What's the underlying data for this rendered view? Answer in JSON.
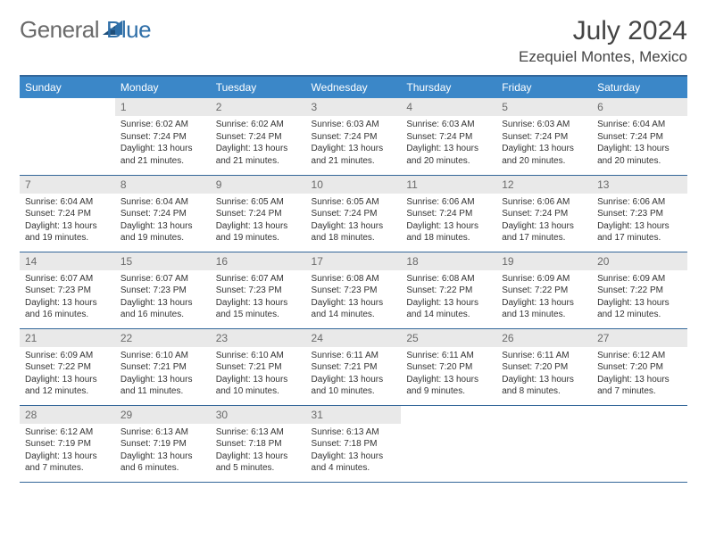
{
  "logo": {
    "text1": "General",
    "text2": "Blue"
  },
  "title": "July 2024",
  "location": "Ezequiel Montes, Mexico",
  "colors": {
    "header_bg": "#3b87c8",
    "header_text": "#ffffff",
    "border": "#336699",
    "daynum_bg": "#e9e9e9",
    "daynum_text": "#6a6a6a",
    "body_text": "#333333",
    "logo_gray": "#6a6a6a",
    "logo_blue": "#2f6fa8"
  },
  "dow": [
    "Sunday",
    "Monday",
    "Tuesday",
    "Wednesday",
    "Thursday",
    "Friday",
    "Saturday"
  ],
  "weeks": [
    [
      null,
      {
        "d": "1",
        "sr": "Sunrise: 6:02 AM",
        "ss": "Sunset: 7:24 PM",
        "dl1": "Daylight: 13 hours",
        "dl2": "and 21 minutes."
      },
      {
        "d": "2",
        "sr": "Sunrise: 6:02 AM",
        "ss": "Sunset: 7:24 PM",
        "dl1": "Daylight: 13 hours",
        "dl2": "and 21 minutes."
      },
      {
        "d": "3",
        "sr": "Sunrise: 6:03 AM",
        "ss": "Sunset: 7:24 PM",
        "dl1": "Daylight: 13 hours",
        "dl2": "and 21 minutes."
      },
      {
        "d": "4",
        "sr": "Sunrise: 6:03 AM",
        "ss": "Sunset: 7:24 PM",
        "dl1": "Daylight: 13 hours",
        "dl2": "and 20 minutes."
      },
      {
        "d": "5",
        "sr": "Sunrise: 6:03 AM",
        "ss": "Sunset: 7:24 PM",
        "dl1": "Daylight: 13 hours",
        "dl2": "and 20 minutes."
      },
      {
        "d": "6",
        "sr": "Sunrise: 6:04 AM",
        "ss": "Sunset: 7:24 PM",
        "dl1": "Daylight: 13 hours",
        "dl2": "and 20 minutes."
      }
    ],
    [
      {
        "d": "7",
        "sr": "Sunrise: 6:04 AM",
        "ss": "Sunset: 7:24 PM",
        "dl1": "Daylight: 13 hours",
        "dl2": "and 19 minutes."
      },
      {
        "d": "8",
        "sr": "Sunrise: 6:04 AM",
        "ss": "Sunset: 7:24 PM",
        "dl1": "Daylight: 13 hours",
        "dl2": "and 19 minutes."
      },
      {
        "d": "9",
        "sr": "Sunrise: 6:05 AM",
        "ss": "Sunset: 7:24 PM",
        "dl1": "Daylight: 13 hours",
        "dl2": "and 19 minutes."
      },
      {
        "d": "10",
        "sr": "Sunrise: 6:05 AM",
        "ss": "Sunset: 7:24 PM",
        "dl1": "Daylight: 13 hours",
        "dl2": "and 18 minutes."
      },
      {
        "d": "11",
        "sr": "Sunrise: 6:06 AM",
        "ss": "Sunset: 7:24 PM",
        "dl1": "Daylight: 13 hours",
        "dl2": "and 18 minutes."
      },
      {
        "d": "12",
        "sr": "Sunrise: 6:06 AM",
        "ss": "Sunset: 7:24 PM",
        "dl1": "Daylight: 13 hours",
        "dl2": "and 17 minutes."
      },
      {
        "d": "13",
        "sr": "Sunrise: 6:06 AM",
        "ss": "Sunset: 7:23 PM",
        "dl1": "Daylight: 13 hours",
        "dl2": "and 17 minutes."
      }
    ],
    [
      {
        "d": "14",
        "sr": "Sunrise: 6:07 AM",
        "ss": "Sunset: 7:23 PM",
        "dl1": "Daylight: 13 hours",
        "dl2": "and 16 minutes."
      },
      {
        "d": "15",
        "sr": "Sunrise: 6:07 AM",
        "ss": "Sunset: 7:23 PM",
        "dl1": "Daylight: 13 hours",
        "dl2": "and 16 minutes."
      },
      {
        "d": "16",
        "sr": "Sunrise: 6:07 AM",
        "ss": "Sunset: 7:23 PM",
        "dl1": "Daylight: 13 hours",
        "dl2": "and 15 minutes."
      },
      {
        "d": "17",
        "sr": "Sunrise: 6:08 AM",
        "ss": "Sunset: 7:23 PM",
        "dl1": "Daylight: 13 hours",
        "dl2": "and 14 minutes."
      },
      {
        "d": "18",
        "sr": "Sunrise: 6:08 AM",
        "ss": "Sunset: 7:22 PM",
        "dl1": "Daylight: 13 hours",
        "dl2": "and 14 minutes."
      },
      {
        "d": "19",
        "sr": "Sunrise: 6:09 AM",
        "ss": "Sunset: 7:22 PM",
        "dl1": "Daylight: 13 hours",
        "dl2": "and 13 minutes."
      },
      {
        "d": "20",
        "sr": "Sunrise: 6:09 AM",
        "ss": "Sunset: 7:22 PM",
        "dl1": "Daylight: 13 hours",
        "dl2": "and 12 minutes."
      }
    ],
    [
      {
        "d": "21",
        "sr": "Sunrise: 6:09 AM",
        "ss": "Sunset: 7:22 PM",
        "dl1": "Daylight: 13 hours",
        "dl2": "and 12 minutes."
      },
      {
        "d": "22",
        "sr": "Sunrise: 6:10 AM",
        "ss": "Sunset: 7:21 PM",
        "dl1": "Daylight: 13 hours",
        "dl2": "and 11 minutes."
      },
      {
        "d": "23",
        "sr": "Sunrise: 6:10 AM",
        "ss": "Sunset: 7:21 PM",
        "dl1": "Daylight: 13 hours",
        "dl2": "and 10 minutes."
      },
      {
        "d": "24",
        "sr": "Sunrise: 6:11 AM",
        "ss": "Sunset: 7:21 PM",
        "dl1": "Daylight: 13 hours",
        "dl2": "and 10 minutes."
      },
      {
        "d": "25",
        "sr": "Sunrise: 6:11 AM",
        "ss": "Sunset: 7:20 PM",
        "dl1": "Daylight: 13 hours",
        "dl2": "and 9 minutes."
      },
      {
        "d": "26",
        "sr": "Sunrise: 6:11 AM",
        "ss": "Sunset: 7:20 PM",
        "dl1": "Daylight: 13 hours",
        "dl2": "and 8 minutes."
      },
      {
        "d": "27",
        "sr": "Sunrise: 6:12 AM",
        "ss": "Sunset: 7:20 PM",
        "dl1": "Daylight: 13 hours",
        "dl2": "and 7 minutes."
      }
    ],
    [
      {
        "d": "28",
        "sr": "Sunrise: 6:12 AM",
        "ss": "Sunset: 7:19 PM",
        "dl1": "Daylight: 13 hours",
        "dl2": "and 7 minutes."
      },
      {
        "d": "29",
        "sr": "Sunrise: 6:13 AM",
        "ss": "Sunset: 7:19 PM",
        "dl1": "Daylight: 13 hours",
        "dl2": "and 6 minutes."
      },
      {
        "d": "30",
        "sr": "Sunrise: 6:13 AM",
        "ss": "Sunset: 7:18 PM",
        "dl1": "Daylight: 13 hours",
        "dl2": "and 5 minutes."
      },
      {
        "d": "31",
        "sr": "Sunrise: 6:13 AM",
        "ss": "Sunset: 7:18 PM",
        "dl1": "Daylight: 13 hours",
        "dl2": "and 4 minutes."
      },
      null,
      null,
      null
    ]
  ]
}
